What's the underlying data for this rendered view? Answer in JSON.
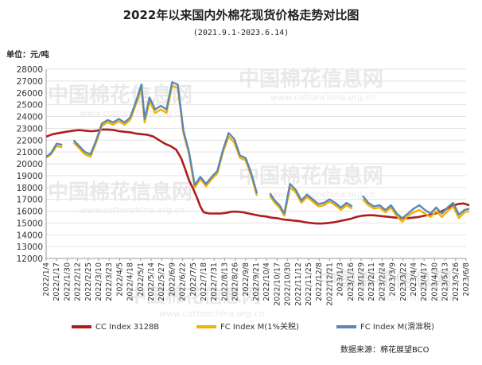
{
  "chart_data": {
    "type": "line",
    "title": "2022年以来国内外棉花现货价格走势对比图",
    "subtitle": "(2021.9.1-2023.6.14)",
    "unit_label": "单位：元/吨",
    "source": "数据来源：棉花展望BCO",
    "ylim": [
      12000,
      28000
    ],
    "y_ticks": [
      12000,
      13000,
      14000,
      15000,
      16000,
      17000,
      18000,
      19000,
      20000,
      21000,
      22000,
      23000,
      24000,
      25000,
      26000,
      27000,
      28000
    ],
    "x_ticks": [
      "2022/1/4",
      "2022/1/17",
      "2022/1/30",
      "2022/2/12",
      "2022/2/25",
      "2022/3/10",
      "2022/3/23",
      "2022/4/5",
      "2022/4/18",
      "2022/5/1",
      "2022/5/14",
      "2022/5/27",
      "2022/6/9",
      "2022/6/22",
      "2022/7/5",
      "2022/7/18",
      "2022/7/31",
      "2022/8/13",
      "2022/8/26",
      "2022/9/8",
      "2022/9/21",
      "2022/10/4",
      "2022/10/17",
      "2022/10/30",
      "2022/11/12",
      "2022/11/25",
      "2022/12/8",
      "2022/12/21",
      "2023/1/3",
      "2023/1/16",
      "2023/1/29",
      "2023/2/11",
      "2023/2/24",
      "2023/3/9",
      "2023/3/22",
      "2023/4/4",
      "2023/4/17",
      "2023/4/30",
      "2023/5/13",
      "2023/5/26",
      "2023/6/8"
    ],
    "grid": true,
    "legend_position": "bottom",
    "watermarks": [
      "中国棉花信息网",
      "www.cottonchina.org.cn"
    ],
    "series": [
      {
        "name": "CC Index 3128B",
        "color": "#b01c1c",
        "points": [
          [
            "2022/1/4",
            22300
          ],
          [
            "2022/1/12",
            22500
          ],
          [
            "2022/1/20",
            22600
          ],
          [
            "2022/1/28",
            22700
          ],
          [
            "2022/2/7",
            22800
          ],
          [
            "2022/2/14",
            22850
          ],
          [
            "2022/2/21",
            22800
          ],
          [
            "2022/3/1",
            22750
          ],
          [
            "2022/3/8",
            22800
          ],
          [
            "2022/3/15",
            22900
          ],
          [
            "2022/3/22",
            22900
          ],
          [
            "2022/3/29",
            22850
          ],
          [
            "2022/4/5",
            22750
          ],
          [
            "2022/4/12",
            22700
          ],
          [
            "2022/4/19",
            22650
          ],
          [
            "2022/4/26",
            22550
          ],
          [
            "2022/5/3",
            22500
          ],
          [
            "2022/5/10",
            22450
          ],
          [
            "2022/5/17",
            22300
          ],
          [
            "2022/5/24",
            22000
          ],
          [
            "2022/5/31",
            21700
          ],
          [
            "2022/6/7",
            21500
          ],
          [
            "2022/6/14",
            21200
          ],
          [
            "2022/6/20",
            20500
          ],
          [
            "2022/6/25",
            19600
          ],
          [
            "2022/6/30",
            18600
          ],
          [
            "2022/7/5",
            17900
          ],
          [
            "2022/7/10",
            17100
          ],
          [
            "2022/7/14",
            16400
          ],
          [
            "2022/7/18",
            15900
          ],
          [
            "2022/7/25",
            15800
          ],
          [
            "2022/8/1",
            15800
          ],
          [
            "2022/8/8",
            15800
          ],
          [
            "2022/8/15",
            15850
          ],
          [
            "2022/8/22",
            15950
          ],
          [
            "2022/8/29",
            15950
          ],
          [
            "2022/9/5",
            15900
          ],
          [
            "2022/9/12",
            15800
          ],
          [
            "2022/9/19",
            15700
          ],
          [
            "2022/9/26",
            15600
          ],
          [
            "2022/10/3",
            15550
          ],
          [
            "2022/10/10",
            15450
          ],
          [
            "2022/10/17",
            15400
          ],
          [
            "2022/10/24",
            15300
          ],
          [
            "2022/10/31",
            15250
          ],
          [
            "2022/11/7",
            15200
          ],
          [
            "2022/11/14",
            15150
          ],
          [
            "2022/11/21",
            15050
          ],
          [
            "2022/11/28",
            15000
          ],
          [
            "2022/12/5",
            14950
          ],
          [
            "2022/12/12",
            14950
          ],
          [
            "2022/12/19",
            15000
          ],
          [
            "2022/12/26",
            15050
          ],
          [
            "2023/1/2",
            15150
          ],
          [
            "2023/1/9",
            15250
          ],
          [
            "2023/1/16",
            15350
          ],
          [
            "2023/1/23",
            15500
          ],
          [
            "2023/1/30",
            15600
          ],
          [
            "2023/2/6",
            15650
          ],
          [
            "2023/2/13",
            15650
          ],
          [
            "2023/2/20",
            15600
          ],
          [
            "2023/2/27",
            15550
          ],
          [
            "2023/3/6",
            15500
          ],
          [
            "2023/3/13",
            15450
          ],
          [
            "2023/3/20",
            15400
          ],
          [
            "2023/3/27",
            15400
          ],
          [
            "2023/4/3",
            15450
          ],
          [
            "2023/4/10",
            15500
          ],
          [
            "2023/4/17",
            15600
          ],
          [
            "2023/4/24",
            15700
          ],
          [
            "2023/5/1",
            15800
          ],
          [
            "2023/5/8",
            15950
          ],
          [
            "2023/5/15",
            16200
          ],
          [
            "2023/5/22",
            16450
          ],
          [
            "2023/5/29",
            16600
          ],
          [
            "2023/6/5",
            16650
          ],
          [
            "2023/6/12",
            16500
          ]
        ]
      },
      {
        "name": "FC Index M(1%关税)",
        "color": "#f2b200",
        "points": [
          [
            "2022/1/4",
            20500
          ],
          [
            "2022/1/10",
            20800
          ],
          [
            "2022/1/17",
            21500
          ],
          [
            "2022/1/24",
            21400
          ],
          [
            "2022/1/30",
            null
          ],
          [
            "2022/2/7",
            21800
          ],
          [
            "2022/2/14",
            21300
          ],
          [
            "2022/2/21",
            20800
          ],
          [
            "2022/2/28",
            20600
          ],
          [
            "2022/3/7",
            21800
          ],
          [
            "2022/3/14",
            23200
          ],
          [
            "2022/3/21",
            23500
          ],
          [
            "2022/3/28",
            23300
          ],
          [
            "2022/4/4",
            23600
          ],
          [
            "2022/4/11",
            23300
          ],
          [
            "2022/4/18",
            23700
          ],
          [
            "2022/4/25",
            25000
          ],
          [
            "2022/5/2",
            26300
          ],
          [
            "2022/5/6",
            23500
          ],
          [
            "2022/5/12",
            25300
          ],
          [
            "2022/5/19",
            24300
          ],
          [
            "2022/5/26",
            24600
          ],
          [
            "2022/6/2",
            24300
          ],
          [
            "2022/6/9",
            26600
          ],
          [
            "2022/6/16",
            26400
          ],
          [
            "2022/6/23",
            22600
          ],
          [
            "2022/6/30",
            20800
          ],
          [
            "2022/7/7",
            18000
          ],
          [
            "2022/7/14",
            18700
          ],
          [
            "2022/7/21",
            18100
          ],
          [
            "2022/7/28",
            18700
          ],
          [
            "2022/8/4",
            19200
          ],
          [
            "2022/8/11",
            21000
          ],
          [
            "2022/8/18",
            22300
          ],
          [
            "2022/8/25",
            21800
          ],
          [
            "2022/9/1",
            20500
          ],
          [
            "2022/9/8",
            20300
          ],
          [
            "2022/9/15",
            19000
          ],
          [
            "2022/9/22",
            17300
          ],
          [
            "2022/9/29",
            null
          ],
          [
            "2022/10/8",
            17300
          ],
          [
            "2022/10/14",
            16700
          ],
          [
            "2022/10/20",
            16300
          ],
          [
            "2022/10/26",
            15600
          ],
          [
            "2022/11/2",
            18000
          ],
          [
            "2022/11/9",
            17600
          ],
          [
            "2022/11/16",
            16700
          ],
          [
            "2022/11/23",
            17200
          ],
          [
            "2022/11/30",
            16800
          ],
          [
            "2022/12/7",
            16400
          ],
          [
            "2022/12/14",
            16500
          ],
          [
            "2022/12/21",
            16800
          ],
          [
            "2022/12/28",
            16500
          ],
          [
            "2023/1/4",
            16100
          ],
          [
            "2023/1/11",
            16500
          ],
          [
            "2023/1/18",
            16200
          ],
          [
            "2023/1/25",
            null
          ],
          [
            "2023/1/31",
            17000
          ],
          [
            "2023/2/7",
            16500
          ],
          [
            "2023/2/14",
            16200
          ],
          [
            "2023/2/21",
            16300
          ],
          [
            "2023/2/28",
            15900
          ],
          [
            "2023/3/7",
            16300
          ],
          [
            "2023/3/14",
            15600
          ],
          [
            "2023/3/21",
            15100
          ],
          [
            "2023/3/28",
            15600
          ],
          [
            "2023/4/4",
            15900
          ],
          [
            "2023/4/11",
            16100
          ],
          [
            "2023/4/18",
            15800
          ],
          [
            "2023/4/25",
            15500
          ],
          [
            "2023/5/2",
            16000
          ],
          [
            "2023/5/9",
            15500
          ],
          [
            "2023/5/16",
            16000
          ],
          [
            "2023/5/23",
            16400
          ],
          [
            "2023/5/30",
            15400
          ],
          [
            "2023/6/6",
            15900
          ],
          [
            "2023/6/12",
            16000
          ]
        ]
      },
      {
        "name": "FC Index M(滑准税)",
        "color": "#5b87b3",
        "points": [
          [
            "2022/1/4",
            20600
          ],
          [
            "2022/1/10",
            20900
          ],
          [
            "2022/1/17",
            21700
          ],
          [
            "2022/1/24",
            21600
          ],
          [
            "2022/1/30",
            null
          ],
          [
            "2022/2/7",
            22000
          ],
          [
            "2022/2/14",
            21500
          ],
          [
            "2022/2/21",
            21000
          ],
          [
            "2022/2/28",
            20800
          ],
          [
            "2022/3/7",
            22000
          ],
          [
            "2022/3/14",
            23400
          ],
          [
            "2022/3/21",
            23700
          ],
          [
            "2022/3/28",
            23500
          ],
          [
            "2022/4/4",
            23800
          ],
          [
            "2022/4/11",
            23500
          ],
          [
            "2022/4/18",
            23900
          ],
          [
            "2022/4/25",
            25200
          ],
          [
            "2022/5/2",
            26700
          ],
          [
            "2022/5/6",
            23800
          ],
          [
            "2022/5/12",
            25600
          ],
          [
            "2022/5/19",
            24600
          ],
          [
            "2022/5/26",
            24900
          ],
          [
            "2022/6/2",
            24600
          ],
          [
            "2022/6/9",
            26900
          ],
          [
            "2022/6/16",
            26700
          ],
          [
            "2022/6/23",
            22800
          ],
          [
            "2022/6/30",
            21000
          ],
          [
            "2022/7/7",
            18200
          ],
          [
            "2022/7/14",
            18900
          ],
          [
            "2022/7/21",
            18300
          ],
          [
            "2022/7/28",
            18900
          ],
          [
            "2022/8/4",
            19400
          ],
          [
            "2022/8/11",
            21200
          ],
          [
            "2022/8/18",
            22600
          ],
          [
            "2022/8/25",
            22100
          ],
          [
            "2022/9/1",
            20700
          ],
          [
            "2022/9/8",
            20500
          ],
          [
            "2022/9/15",
            19200
          ],
          [
            "2022/9/22",
            17500
          ],
          [
            "2022/9/29",
            null
          ],
          [
            "2022/10/8",
            17500
          ],
          [
            "2022/10/14",
            16900
          ],
          [
            "2022/10/20",
            16500
          ],
          [
            "2022/10/26",
            15800
          ],
          [
            "2022/11/2",
            18300
          ],
          [
            "2022/11/9",
            17800
          ],
          [
            "2022/11/16",
            16900
          ],
          [
            "2022/11/23",
            17400
          ],
          [
            "2022/11/30",
            17000
          ],
          [
            "2022/12/7",
            16600
          ],
          [
            "2022/12/14",
            16700
          ],
          [
            "2022/12/21",
            17000
          ],
          [
            "2022/12/28",
            16700
          ],
          [
            "2023/1/4",
            16300
          ],
          [
            "2023/1/11",
            16700
          ],
          [
            "2023/1/18",
            16400
          ],
          [
            "2023/1/25",
            null
          ],
          [
            "2023/1/31",
            17300
          ],
          [
            "2023/2/7",
            16700
          ],
          [
            "2023/2/14",
            16400
          ],
          [
            "2023/2/21",
            16500
          ],
          [
            "2023/2/28",
            16100
          ],
          [
            "2023/3/7",
            16500
          ],
          [
            "2023/3/14",
            15800
          ],
          [
            "2023/3/21",
            15400
          ],
          [
            "2023/3/28",
            15800
          ],
          [
            "2023/4/4",
            16200
          ],
          [
            "2023/4/11",
            16500
          ],
          [
            "2023/4/18",
            16100
          ],
          [
            "2023/4/25",
            15800
          ],
          [
            "2023/5/2",
            16300
          ],
          [
            "2023/5/9",
            15800
          ],
          [
            "2023/5/16",
            16300
          ],
          [
            "2023/5/23",
            16700
          ],
          [
            "2023/5/30",
            15700
          ],
          [
            "2023/6/6",
            16100
          ],
          [
            "2023/6/12",
            16200
          ]
        ]
      }
    ]
  }
}
